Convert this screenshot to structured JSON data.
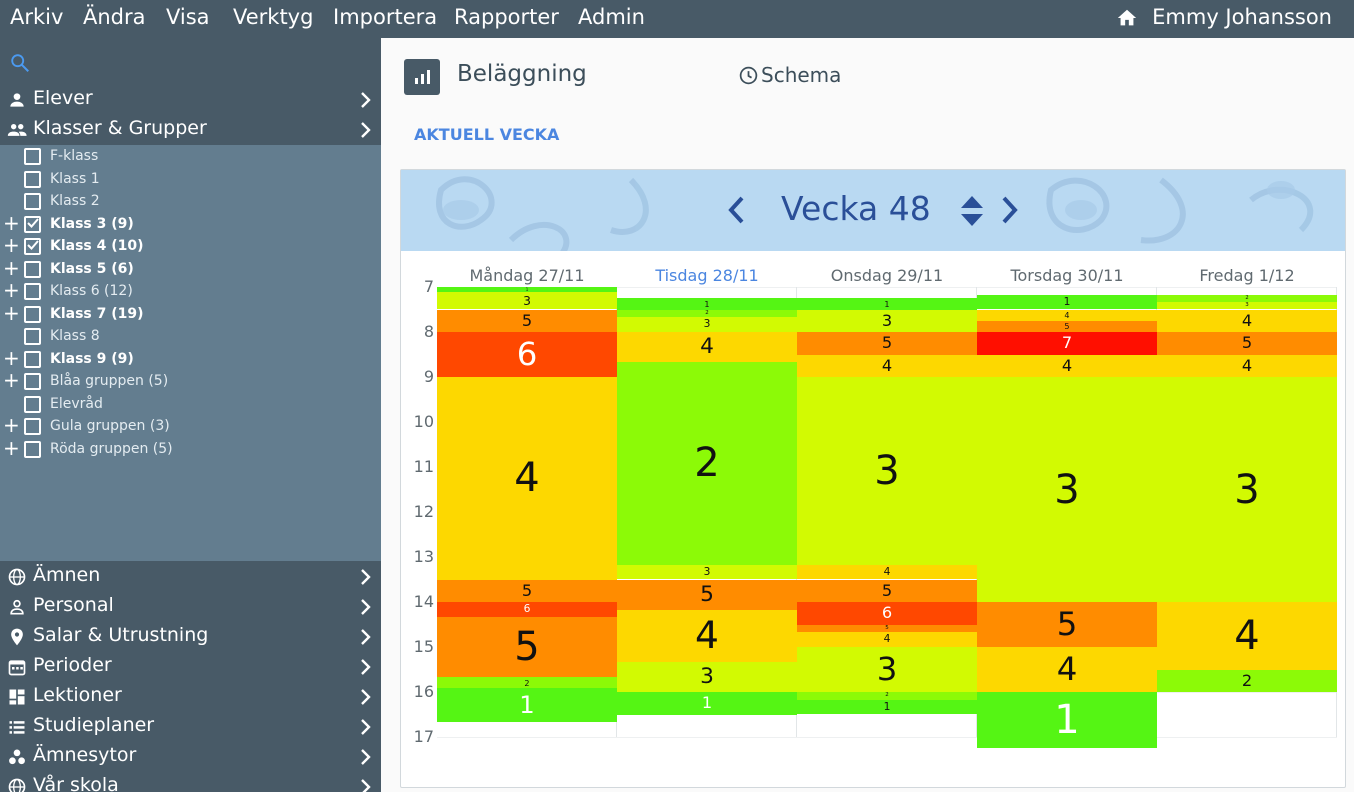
{
  "menu": {
    "items": [
      "Arkiv",
      "Ändra",
      "Visa",
      "Verktyg",
      "Importera",
      "Rapporter",
      "Admin"
    ],
    "user": "Emmy Johansson"
  },
  "sidebar": {
    "nav_top": [
      {
        "label": "Elever",
        "icon": "person-icon"
      },
      {
        "label": "Klasser & Grupper",
        "icon": "people-icon"
      }
    ],
    "classes": [
      {
        "label": "F-klass",
        "checked": false,
        "expandable": false,
        "bold": false
      },
      {
        "label": "Klass 1",
        "checked": false,
        "expandable": false,
        "bold": false
      },
      {
        "label": "Klass 2",
        "checked": false,
        "expandable": false,
        "bold": false
      },
      {
        "label": "Klass 3 (9)",
        "checked": true,
        "expandable": true,
        "bold": true
      },
      {
        "label": "Klass 4 (10)",
        "checked": true,
        "expandable": true,
        "bold": true
      },
      {
        "label": "Klass 5 (6)",
        "checked": false,
        "expandable": true,
        "bold": true
      },
      {
        "label": "Klass 6 (12)",
        "checked": false,
        "expandable": true,
        "bold": false
      },
      {
        "label": "Klass 7 (19)",
        "checked": false,
        "expandable": true,
        "bold": true
      },
      {
        "label": "Klass 8",
        "checked": false,
        "expandable": false,
        "bold": false
      },
      {
        "label": "Klass 9 (9)",
        "checked": false,
        "expandable": true,
        "bold": true
      },
      {
        "label": "Blåa gruppen (5)",
        "checked": false,
        "expandable": true,
        "bold": false
      },
      {
        "label": "Elevråd",
        "checked": false,
        "expandable": false,
        "bold": false
      },
      {
        "label": "Gula gruppen (3)",
        "checked": false,
        "expandable": true,
        "bold": false
      },
      {
        "label": "Röda gruppen (5)",
        "checked": false,
        "expandable": true,
        "bold": false
      }
    ],
    "nav_bottom": [
      {
        "label": "Ämnen",
        "icon": "globe-icon"
      },
      {
        "label": "Personal",
        "icon": "person-outline-icon"
      },
      {
        "label": "Salar & Utrustning",
        "icon": "location-pin-icon"
      },
      {
        "label": "Perioder",
        "icon": "calendar-icon"
      },
      {
        "label": "Lektioner",
        "icon": "dashboard-icon"
      },
      {
        "label": "Studieplaner",
        "icon": "list-icon"
      },
      {
        "label": "Ämnesytor",
        "icon": "bubbles-icon"
      },
      {
        "label": "Vår skola",
        "icon": "globe-icon"
      }
    ]
  },
  "main": {
    "title": "Beläggning",
    "schedule_label": "Schema",
    "current_week": "AKTUELL VECKA",
    "week_label": "Vecka 48"
  },
  "colors": {
    "1": "#55f514",
    "2": "#8cfa07",
    "3": "#d2fa02",
    "4": "#fdd800",
    "5": "#ff8c00",
    "6": "#ff4800",
    "7": "#ff0f00"
  },
  "chart_data": {
    "type": "heatmap",
    "hours": [
      "7",
      "8",
      "9",
      "10",
      "11",
      "12",
      "13",
      "14",
      "15",
      "16",
      "17"
    ],
    "days": [
      {
        "label": "Måndag 27/11",
        "active": false,
        "segments": [
          {
            "from": 7.0,
            "to": 7.12,
            "v": 1
          },
          {
            "from": 7.12,
            "to": 7.5,
            "v": 3
          },
          {
            "from": 7.5,
            "to": 8.0,
            "v": 5
          },
          {
            "from": 8.0,
            "to": 9.0,
            "v": 6
          },
          {
            "from": 9.0,
            "to": 13.5,
            "v": 4
          },
          {
            "from": 13.5,
            "to": 14.0,
            "v": 5
          },
          {
            "from": 14.0,
            "to": 14.33,
            "v": 6
          },
          {
            "from": 14.33,
            "to": 15.67,
            "v": 5
          },
          {
            "from": 15.67,
            "to": 15.92,
            "v": 2
          },
          {
            "from": 15.92,
            "to": 16.67,
            "v": 1
          }
        ]
      },
      {
        "label": "Tisdag 28/11",
        "active": true,
        "segments": [
          {
            "from": 7.25,
            "to": 7.5,
            "v": 1
          },
          {
            "from": 7.5,
            "to": 7.67,
            "v": 2
          },
          {
            "from": 7.67,
            "to": 8.0,
            "v": 3
          },
          {
            "from": 8.0,
            "to": 8.67,
            "v": 4
          },
          {
            "from": 8.67,
            "to": 13.17,
            "v": 2
          },
          {
            "from": 13.17,
            "to": 13.5,
            "v": 3
          },
          {
            "from": 13.5,
            "to": 14.17,
            "v": 5
          },
          {
            "from": 14.17,
            "to": 15.33,
            "v": 4
          },
          {
            "from": 15.33,
            "to": 16.0,
            "v": 3
          },
          {
            "from": 16.0,
            "to": 16.5,
            "v": 1
          }
        ]
      },
      {
        "label": "Onsdag 29/11",
        "active": false,
        "segments": [
          {
            "from": 7.25,
            "to": 7.5,
            "v": 1
          },
          {
            "from": 7.5,
            "to": 8.0,
            "v": 3
          },
          {
            "from": 8.0,
            "to": 8.5,
            "v": 5
          },
          {
            "from": 8.5,
            "to": 9.0,
            "v": 4
          },
          {
            "from": 9.0,
            "to": 13.17,
            "v": 3
          },
          {
            "from": 13.17,
            "to": 13.5,
            "v": 4
          },
          {
            "from": 13.5,
            "to": 14.0,
            "v": 5
          },
          {
            "from": 14.0,
            "to": 14.5,
            "v": 6
          },
          {
            "from": 14.5,
            "to": 14.67,
            "v": 5
          },
          {
            "from": 14.67,
            "to": 15.0,
            "v": 4
          },
          {
            "from": 15.0,
            "to": 16.0,
            "v": 3
          },
          {
            "from": 16.0,
            "to": 16.17,
            "v": 2
          },
          {
            "from": 16.17,
            "to": 16.5,
            "v": 1
          }
        ]
      },
      {
        "label": "Torsdag 30/11",
        "active": false,
        "segments": [
          {
            "from": 7.17,
            "to": 7.5,
            "v": 1
          },
          {
            "from": 7.5,
            "to": 7.75,
            "v": 4
          },
          {
            "from": 7.75,
            "to": 8.0,
            "v": 5
          },
          {
            "from": 8.0,
            "to": 8.5,
            "v": 7
          },
          {
            "from": 8.5,
            "to": 9.0,
            "v": 4
          },
          {
            "from": 9.0,
            "to": 14.0,
            "v": 3
          },
          {
            "from": 14.0,
            "to": 15.0,
            "v": 5
          },
          {
            "from": 15.0,
            "to": 16.0,
            "v": 4
          },
          {
            "from": 16.0,
            "to": 17.25,
            "v": 1
          }
        ]
      },
      {
        "label": "Fredag 1/12",
        "active": false,
        "segments": [
          {
            "from": 7.17,
            "to": 7.33,
            "v": 2
          },
          {
            "from": 7.33,
            "to": 7.5,
            "v": 3
          },
          {
            "from": 7.5,
            "to": 8.0,
            "v": 4
          },
          {
            "from": 8.0,
            "to": 8.5,
            "v": 5
          },
          {
            "from": 8.5,
            "to": 9.0,
            "v": 4
          },
          {
            "from": 9.0,
            "to": 14.0,
            "v": 3
          },
          {
            "from": 14.0,
            "to": 15.5,
            "v": 4
          },
          {
            "from": 15.5,
            "to": 16.0,
            "v": 2
          }
        ]
      }
    ]
  }
}
